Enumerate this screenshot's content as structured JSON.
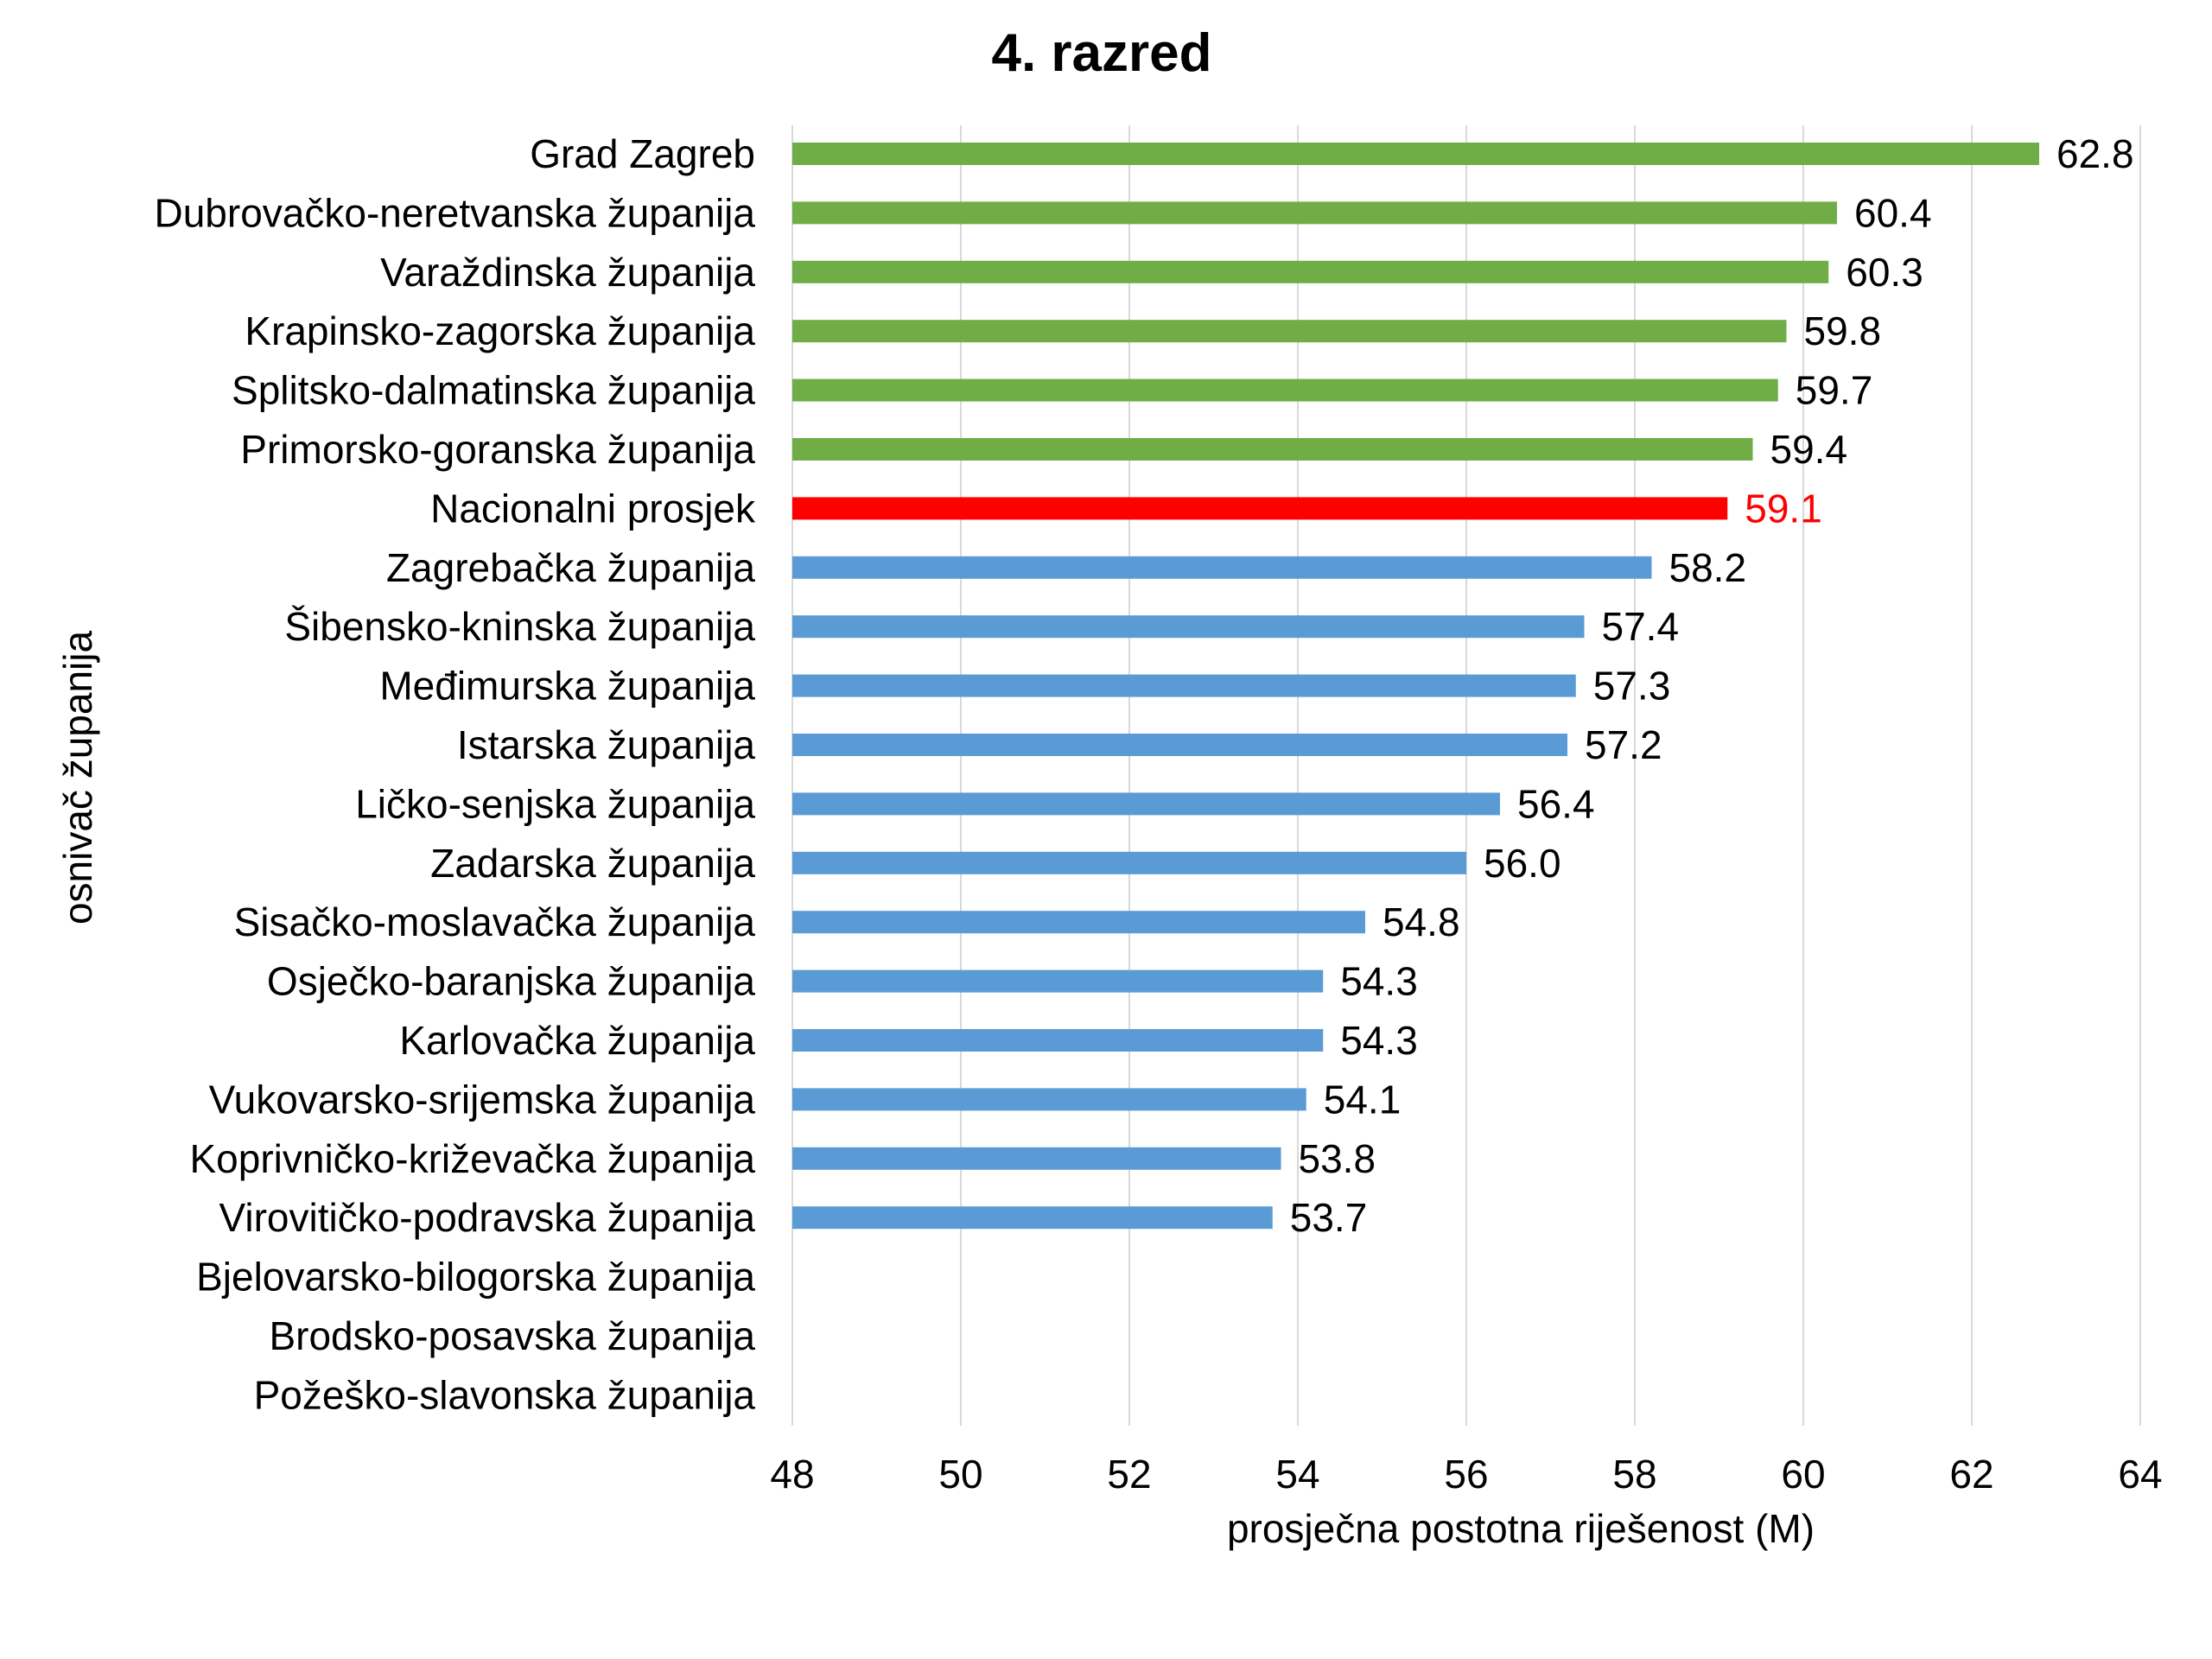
{
  "chart_data": {
    "type": "bar",
    "orientation": "horizontal",
    "title": "4. razred",
    "xlabel": "prosječna postotna riješenost (M)",
    "ylabel": "osnivač županija",
    "xlim": [
      48,
      64
    ],
    "xticks": [
      48,
      50,
      52,
      54,
      56,
      58,
      60,
      62,
      64
    ],
    "grid": "vertical",
    "legend": "none",
    "colors": {
      "above": "#70ad47",
      "national": "#ff0000",
      "below": "#5b9bd5",
      "label": "#000000",
      "national_label": "#ff0000",
      "grid": "#d9d9d9"
    },
    "categories": [
      "Grad Zagreb",
      "Dubrovačko-neretvanska županija",
      "Varaždinska županija",
      "Krapinsko-zagorska županija",
      "Splitsko-dalmatinska županija",
      "Primorsko-goranska županija",
      "Nacionalni prosjek",
      "Zagrebačka županija",
      "Šibensko-kninska županija",
      "Međimurska županija",
      "Istarska županija",
      "Ličko-senjska županija",
      "Zadarska županija",
      "Sisačko-moslavačka županija",
      "Osječko-baranjska županija",
      "Karlovačka županija",
      "Vukovarsko-srijemska županija",
      "Koprivničko-križevačka županija",
      "Virovitičko-podravska županija",
      "Bjelovarsko-bilogorska županija",
      "Brodsko-posavska županija",
      "Požeško-slavonska županija"
    ],
    "values": [
      62.8,
      60.4,
      60.3,
      59.8,
      59.7,
      59.4,
      59.1,
      58.2,
      57.4,
      57.3,
      57.2,
      56.4,
      56.0,
      54.8,
      54.3,
      54.3,
      54.1,
      53.8,
      53.7,
      null,
      null,
      null
    ],
    "value_labels": [
      "62.8",
      "60.4",
      "60.3",
      "59.8",
      "59.7",
      "59.4",
      "59.1",
      "58.2",
      "57.4",
      "57.3",
      "57.2",
      "56.4",
      "56.0",
      "54.8",
      "54.3",
      "54.3",
      "54.1",
      "53.8",
      "53.7",
      "",
      "",
      ""
    ],
    "group": [
      "above",
      "above",
      "above",
      "above",
      "above",
      "above",
      "national",
      "below",
      "below",
      "below",
      "below",
      "below",
      "below",
      "below",
      "below",
      "below",
      "below",
      "below",
      "below",
      "none",
      "none",
      "none"
    ]
  }
}
